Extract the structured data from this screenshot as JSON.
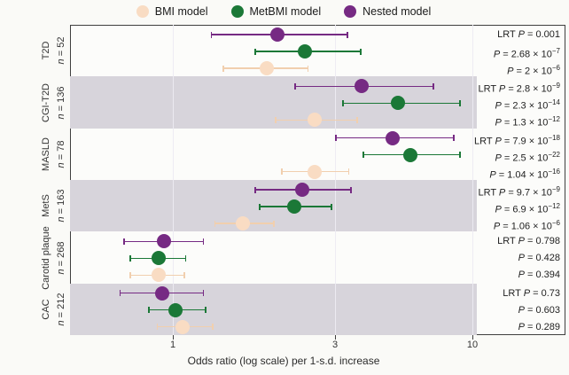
{
  "legend": {
    "items": [
      {
        "label": "BMI model",
        "color": "#f9dcc3"
      },
      {
        "label": "MetBMI model",
        "color": "#1b7837"
      },
      {
        "label": "Nested model",
        "color": "#762a83"
      }
    ]
  },
  "symbols": {
    "p": "P",
    "n": "n"
  },
  "colors": {
    "band_gray": "#d7d4db",
    "series": {
      "BMI model": {
        "fill": "#f9dcc3",
        "bar": "#f1cfae"
      },
      "MetBMI model": {
        "fill": "#1b7837",
        "bar": "#1b7837"
      },
      "Nested model": {
        "fill": "#762a83",
        "bar": "#762a83"
      }
    }
  },
  "chart_data": {
    "type": "scatter",
    "subtype": "forest-plot",
    "x_scale": "log",
    "x_ticks": [
      1,
      3,
      10
    ],
    "xlabel": "Odds ratio (log scale) per 1-s.d. increase",
    "series_names": [
      "Nested model",
      "MetBMI model",
      "BMI model"
    ],
    "rows": [
      {
        "condition": "T2D",
        "n_value": " = 52",
        "points": [
          {
            "model": "Nested model",
            "or": 2.03,
            "ci": [
              1.3,
              3.34
            ]
          },
          {
            "model": "MetBMI model",
            "or": 2.45,
            "ci": [
              1.75,
              3.76
            ]
          },
          {
            "model": "BMI model",
            "or": 1.89,
            "ci": [
              1.41,
              2.5
            ]
          }
        ],
        "stats": [
          {
            "prefix": "LRT ",
            "rest": " = 0.001",
            "exp": ""
          },
          {
            "prefix": "",
            "rest": " = 2.68 × 10",
            "exp": "−7"
          },
          {
            "prefix": "",
            "rest": " = 2 × 10",
            "exp": "−6"
          }
        ]
      },
      {
        "condition": "CGI-T2D",
        "n_value": " = 136",
        "points": [
          {
            "model": "Nested model",
            "or": 3.79,
            "ci": [
              2.29,
              7.1
            ]
          },
          {
            "model": "MetBMI model",
            "or": 5.21,
            "ci": [
              3.22,
              8.97
            ]
          },
          {
            "model": "BMI model",
            "or": 2.61,
            "ci": [
              2.01,
              3.64
            ]
          }
        ],
        "stats": [
          {
            "prefix": "LRT ",
            "rest": " = 2.8 × 10",
            "exp": "−9"
          },
          {
            "prefix": "",
            "rest": " = 2.3 × 10",
            "exp": "−14"
          },
          {
            "prefix": "",
            "rest": " = 1.3 × 10",
            "exp": "−12"
          }
        ]
      },
      {
        "condition": "MASLD",
        "n_value": " = 78",
        "points": [
          {
            "model": "Nested model",
            "or": 4.97,
            "ci": [
              3.02,
              8.49
            ]
          },
          {
            "model": "MetBMI model",
            "or": 5.8,
            "ci": [
              3.85,
              8.97
            ]
          },
          {
            "model": "BMI model",
            "or": 2.61,
            "ci": [
              2.09,
              3.38
            ]
          }
        ],
        "stats": [
          {
            "prefix": "LRT ",
            "rest": " = 7.9 × 10",
            "exp": "−18"
          },
          {
            "prefix": "",
            "rest": " = 2.5 × 10",
            "exp": "−22"
          },
          {
            "prefix": "",
            "rest": " = 1.04 × 10",
            "exp": "−16"
          }
        ]
      },
      {
        "condition": "MetS",
        "n_value": " = 163",
        "points": [
          {
            "model": "Nested model",
            "or": 2.4,
            "ci": [
              1.75,
              3.45
            ]
          },
          {
            "model": "MetBMI model",
            "or": 2.27,
            "ci": [
              1.8,
              2.93
            ]
          },
          {
            "model": "BMI model",
            "or": 1.61,
            "ci": [
              1.33,
              1.98
            ]
          }
        ],
        "stats": [
          {
            "prefix": "LRT ",
            "rest": " = 9.7 × 10",
            "exp": "−9"
          },
          {
            "prefix": "",
            "rest": " = 6.9 × 10",
            "exp": "−12"
          },
          {
            "prefix": "",
            "rest": " = 1.06 × 10",
            "exp": "−6"
          }
        ]
      },
      {
        "condition": "Carotid plaque",
        "n_value": " = 268",
        "points": [
          {
            "model": "Nested model",
            "or": 0.94,
            "ci": [
              0.72,
              1.23
            ]
          },
          {
            "model": "MetBMI model",
            "or": 0.91,
            "ci": [
              0.75,
              1.09
            ]
          },
          {
            "model": "BMI model",
            "or": 0.91,
            "ci": [
              0.75,
              1.08
            ]
          }
        ],
        "stats": [
          {
            "prefix": "LRT ",
            "rest": " = 0.798",
            "exp": ""
          },
          {
            "prefix": "",
            "rest": " = 0.428",
            "exp": ""
          },
          {
            "prefix": "",
            "rest": " = 0.394",
            "exp": ""
          }
        ]
      },
      {
        "condition": "CAC",
        "n_value": " = 212",
        "points": [
          {
            "model": "Nested model",
            "or": 0.93,
            "ci": [
              0.7,
              1.23
            ]
          },
          {
            "model": "MetBMI model",
            "or": 1.02,
            "ci": [
              0.85,
              1.25
            ]
          },
          {
            "model": "BMI model",
            "or": 1.07,
            "ci": [
              0.9,
              1.31
            ]
          }
        ],
        "stats": [
          {
            "prefix": "LRT ",
            "rest": " = 0.73",
            "exp": ""
          },
          {
            "prefix": "",
            "rest": " = 0.603",
            "exp": ""
          },
          {
            "prefix": "",
            "rest": " = 0.289",
            "exp": ""
          }
        ]
      }
    ]
  }
}
